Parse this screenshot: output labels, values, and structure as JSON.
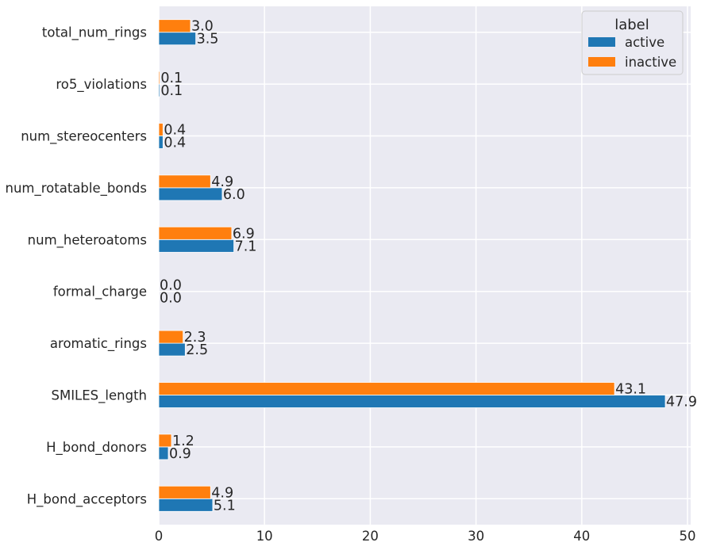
{
  "chart_data": {
    "type": "bar",
    "orientation": "horizontal",
    "title": "",
    "xlabel": "",
    "ylabel": "",
    "xlim": [
      0,
      50.3
    ],
    "xticks": [
      "0",
      "10",
      "20",
      "30",
      "40",
      "50"
    ],
    "grid": true,
    "legend": {
      "title": "label",
      "position": "top-right"
    },
    "categories": [
      "total_num_rings",
      "ro5_violations",
      "num_stereocenters",
      "num_rotatable_bonds",
      "num_heteroatoms",
      "formal_charge",
      "aromatic_rings",
      "SMILES_length",
      "H_bond_donors",
      "H_bond_acceptors"
    ],
    "series": [
      {
        "name": "active",
        "color": "#1f77b4",
        "values": [
          3.5,
          0.1,
          0.4,
          6.0,
          7.1,
          0.0,
          2.5,
          47.9,
          0.9,
          5.1
        ],
        "labels": [
          "3.5",
          "0.1",
          "0.4",
          "6.0",
          "7.1",
          "0.0",
          "2.5",
          "47.9",
          "0.9",
          "5.1"
        ]
      },
      {
        "name": "inactive",
        "color": "#ff7f0e",
        "values": [
          3.0,
          0.1,
          0.4,
          4.9,
          6.9,
          0.0,
          2.3,
          43.1,
          1.2,
          4.9
        ],
        "labels": [
          "3.0",
          "0.1",
          "0.4",
          "4.9",
          "6.9",
          "0.0",
          "2.3",
          "43.1",
          "1.2",
          "4.9"
        ]
      }
    ]
  },
  "colors": {
    "plot_background": "#eaeaf2",
    "grid": "#ffffff",
    "text": "#262626"
  }
}
